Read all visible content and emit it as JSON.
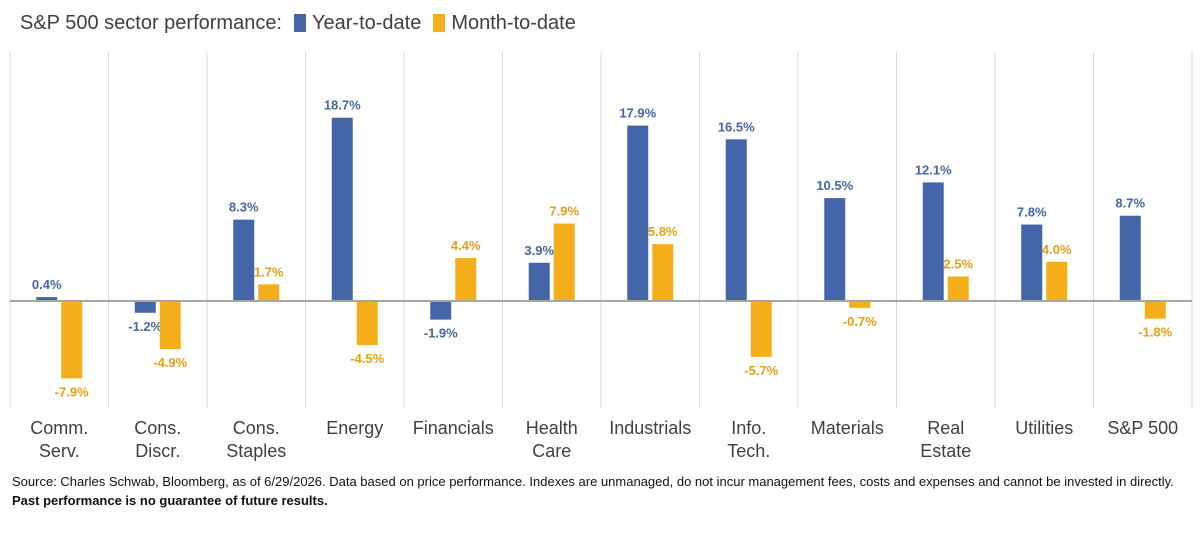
{
  "colors": {
    "ytd": "#4466A8",
    "mtd": "#F4AE1A",
    "axis": "#A6A6A6",
    "grid": "#D9D9D9",
    "ytd_label": "#4466A8",
    "mtd_label": "#E8A00F"
  },
  "chart_data": {
    "type": "bar",
    "title": "S&P 500 sector performance:",
    "categories": [
      [
        "Comm.",
        "Serv."
      ],
      [
        "Cons.",
        "Discr."
      ],
      [
        "Cons.",
        "Staples"
      ],
      [
        "Energy"
      ],
      [
        "Financials"
      ],
      [
        "Health",
        "Care"
      ],
      [
        "Industrials"
      ],
      [
        "Info.",
        "Tech."
      ],
      [
        "Materials"
      ],
      [
        "Real",
        "Estate"
      ],
      [
        "Utilities"
      ],
      [
        "S&P 500"
      ]
    ],
    "series": [
      {
        "name": "Year-to-date",
        "values": [
          0.4,
          -1.2,
          8.3,
          18.7,
          -1.9,
          3.9,
          17.9,
          16.5,
          10.5,
          12.1,
          7.8,
          8.7
        ],
        "labels": [
          "0.4%",
          "-1.2%",
          "8.3%",
          "18.7%",
          "-1.9%",
          "3.9%",
          "17.9%",
          "16.5%",
          "10.5%",
          "12.1%",
          "7.8%",
          "8.7%"
        ]
      },
      {
        "name": "Month-to-date",
        "values": [
          -7.9,
          -4.9,
          1.7,
          -4.5,
          4.4,
          7.9,
          5.8,
          -5.7,
          -0.7,
          2.5,
          4.0,
          -1.8
        ],
        "labels": [
          "-7.9%",
          "-4.9%",
          "1.7%",
          "-4.5%",
          "4.4%",
          "7.9%",
          "5.8%",
          "-5.7%",
          "-0.7%",
          "2.5%",
          "4.0%",
          "-1.8%"
        ]
      }
    ],
    "legend_placement": "top",
    "vertical_separators": true,
    "ylim": [
      -10,
      20
    ]
  },
  "footnote": {
    "text": "Source: Charles Schwab, Bloomberg, as of 6/29/2026. Data based on price performance. Indexes are unmanaged, do not incur management fees, costs and expenses and cannot be invested in directly. ",
    "bold": "Past performance is no guarantee of future results."
  }
}
